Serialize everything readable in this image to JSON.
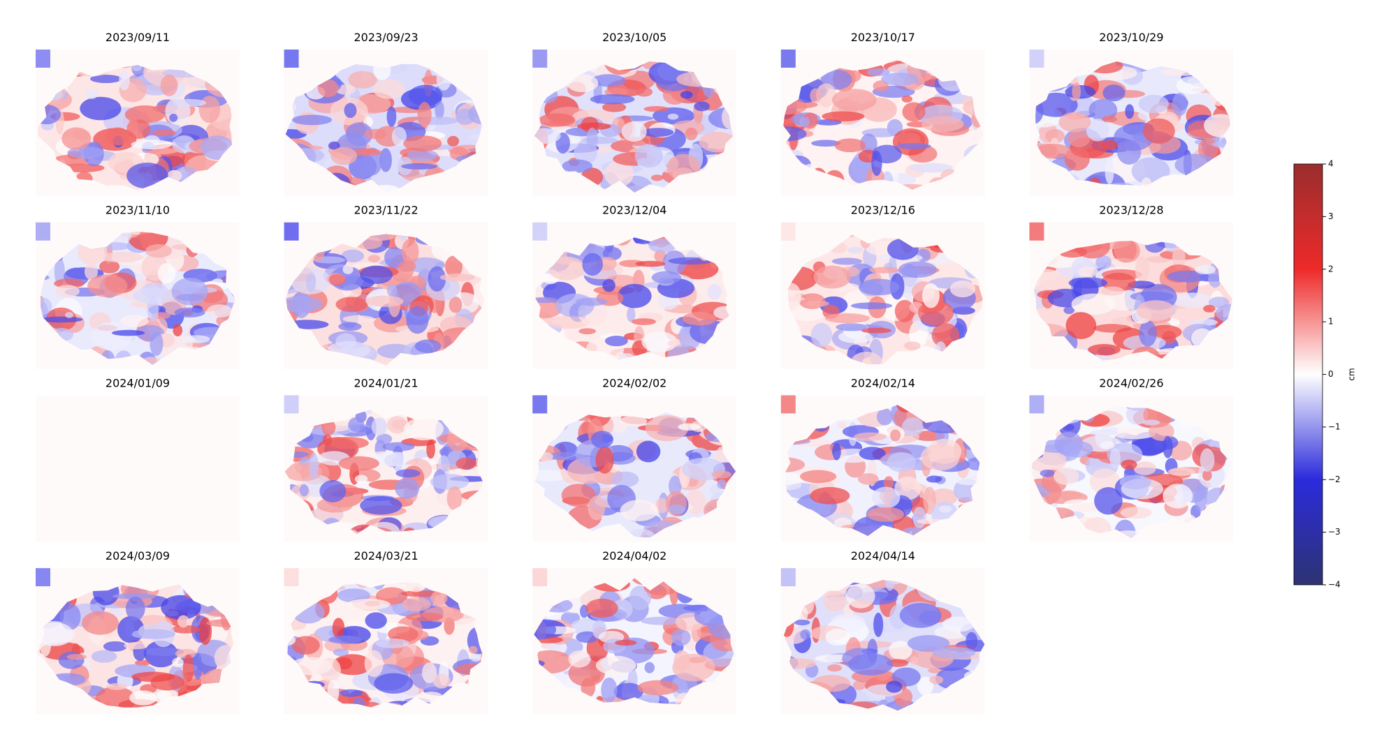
{
  "chart_data": {
    "type": "image_grid",
    "panels": [
      "2023/09/11",
      "2023/09/23",
      "2023/10/05",
      "2023/10/17",
      "2023/10/29",
      "2023/11/10",
      "2023/11/22",
      "2023/12/04",
      "2023/12/16",
      "2023/12/28",
      "2024/01/09",
      "2024/01/21",
      "2024/02/02",
      "2024/02/14",
      "2024/02/26",
      "2024/03/09",
      "2024/03/21",
      "2024/04/02",
      "2024/04/14"
    ],
    "colorbar": {
      "label": "cm",
      "lim": [
        -4,
        4
      ],
      "ticks": [
        {
          "value": -4,
          "label": "−4"
        },
        {
          "value": -3,
          "label": "−3"
        },
        {
          "value": -2,
          "label": "−2"
        },
        {
          "value": -1,
          "label": "−1"
        },
        0,
        1,
        2,
        3,
        4
      ]
    }
  }
}
